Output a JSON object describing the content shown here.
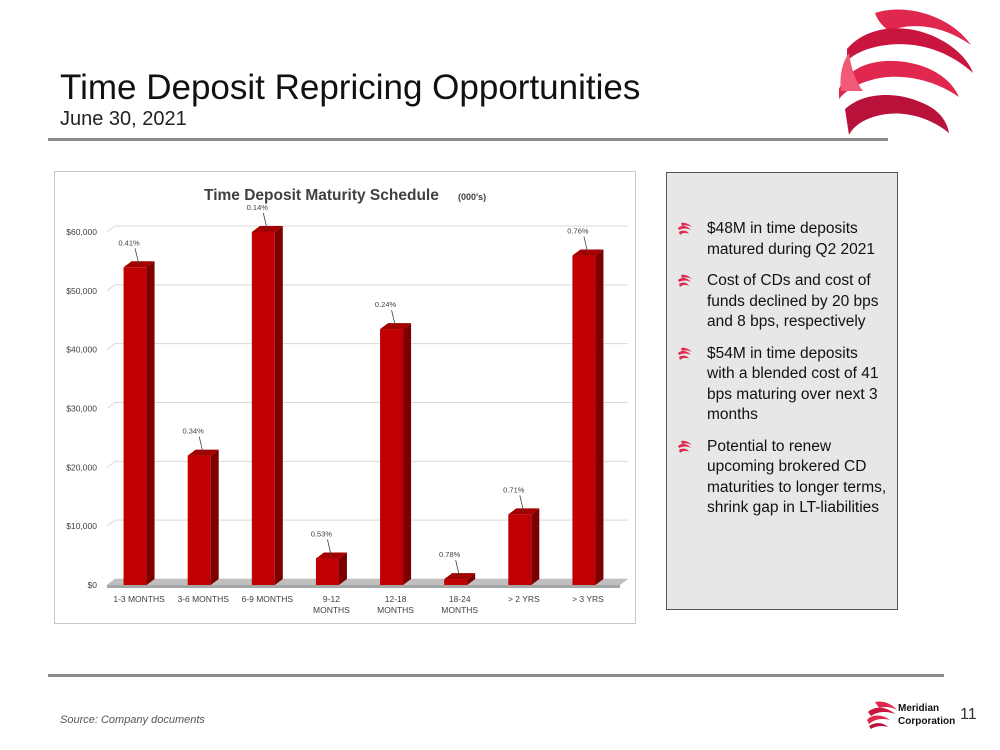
{
  "header": {
    "title": "Time Deposit Repricing Opportunities",
    "subtitle": "June 30, 2021"
  },
  "chart_data": {
    "type": "bar",
    "title": "Time Deposit Maturity Schedule",
    "title_suffix": "(000's)",
    "categories": [
      [
        "1-3 MONTHS"
      ],
      [
        "3-6 MONTHS"
      ],
      [
        "6-9 MONTHS"
      ],
      [
        "9-12",
        "MONTHS"
      ],
      [
        "12-18",
        "MONTHS"
      ],
      [
        "18-24",
        "MONTHS"
      ],
      [
        "> 2 YRS"
      ],
      [
        "> 3 YRS"
      ]
    ],
    "values": [
      54000,
      22000,
      60000,
      4500,
      43500,
      1000,
      12000,
      56000
    ],
    "data_labels": [
      "0.41%",
      "0.34%",
      "0.14%",
      "0.53%",
      "0.24%",
      "0.78%",
      "0.71%",
      "0.76%"
    ],
    "ylim": [
      0,
      60000
    ],
    "yticks": [
      0,
      10000,
      20000,
      30000,
      40000,
      50000,
      60000
    ],
    "ytick_labels": [
      "$0",
      "$10,000",
      "$20,000",
      "$30,000",
      "$40,000",
      "$50,000",
      "$60,000"
    ],
    "xlabel": "",
    "ylabel": "",
    "bar_color": "#c00000",
    "grid": true
  },
  "panel": {
    "bullets": [
      "$48M in time deposits matured during Q2 2021",
      "Cost of CDs and cost of funds declined by 20 bps and 8 bps, respectively",
      "$54M in time deposits with a blended cost of 41 bps maturing over next 3 months",
      "Potential to renew upcoming brokered CD maturities to longer terms, shrink gap in LT-liabilities"
    ]
  },
  "footer": {
    "source": "Source:  Company documents",
    "company_line1": "Meridian",
    "company_line2": "Corporation",
    "page_number": "11"
  },
  "colors": {
    "brand": "#e0284f",
    "bar": "#c00000",
    "rule": "#8c8c8c"
  }
}
